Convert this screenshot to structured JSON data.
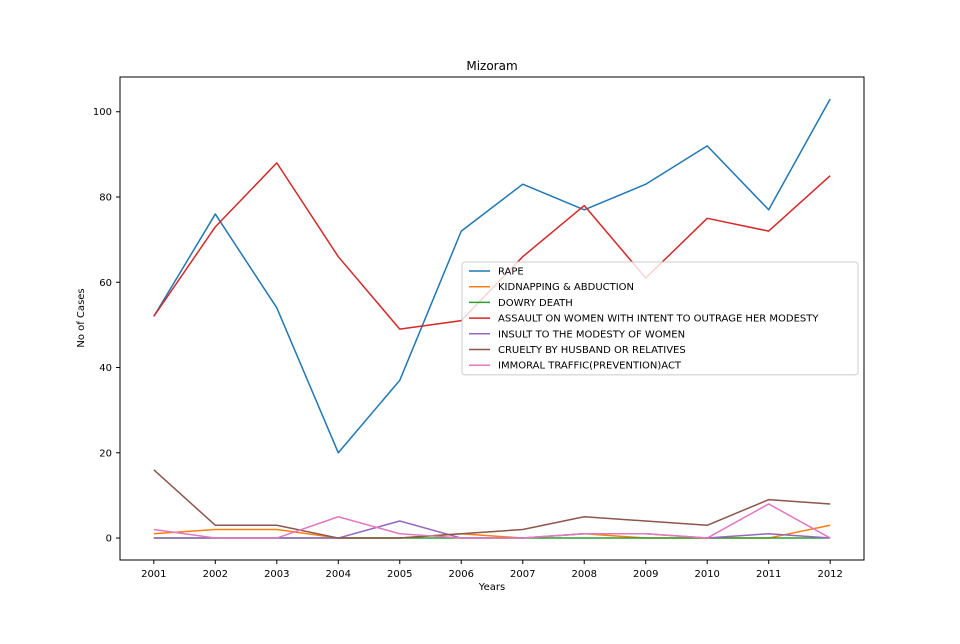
{
  "chart_data": {
    "type": "line",
    "title": "Mizoram",
    "xlabel": "Years",
    "ylabel": "No of Cases",
    "x": [
      2001,
      2002,
      2003,
      2004,
      2005,
      2006,
      2007,
      2008,
      2009,
      2010,
      2011,
      2012
    ],
    "xlim": [
      2000.45,
      2012.55
    ],
    "ylim": [
      -5.15,
      108.15
    ],
    "yticks": [
      0,
      20,
      40,
      60,
      80,
      100
    ],
    "grid": false,
    "legend_position": "center-right",
    "series": [
      {
        "name": "RAPE",
        "color": "#1f77b4",
        "values": [
          52,
          76,
          54,
          20,
          37,
          72,
          83,
          77,
          83,
          92,
          77,
          103
        ]
      },
      {
        "name": "KIDNAPPING & ABDUCTION",
        "color": "#ff7f0e",
        "values": [
          1,
          2,
          2,
          0,
          0,
          1,
          0,
          1,
          0,
          0,
          0,
          3
        ]
      },
      {
        "name": "DOWRY DEATH",
        "color": "#2ca02c",
        "values": [
          0,
          0,
          0,
          0,
          0,
          0,
          0,
          0,
          0,
          0,
          0,
          0
        ]
      },
      {
        "name": "ASSAULT ON WOMEN WITH INTENT TO OUTRAGE HER MODESTY",
        "color": "#d62728",
        "values": [
          52,
          73,
          88,
          66,
          49,
          51,
          66,
          78,
          61,
          75,
          72,
          85
        ]
      },
      {
        "name": "INSULT TO THE MODESTY OF WOMEN",
        "color": "#9467bd",
        "values": [
          0,
          0,
          0,
          0,
          4,
          0,
          0,
          1,
          1,
          0,
          1,
          0
        ]
      },
      {
        "name": "CRUELTY BY HUSBAND OR RELATIVES",
        "color": "#8c564b",
        "values": [
          16,
          3,
          3,
          0,
          0,
          1,
          2,
          5,
          4,
          3,
          9,
          8
        ]
      },
      {
        "name": "IMMORAL TRAFFIC(PREVENTION)ACT",
        "color": "#e377c2",
        "values": [
          2,
          0,
          0,
          5,
          1,
          0,
          0,
          1,
          1,
          0,
          8,
          0
        ]
      }
    ]
  }
}
